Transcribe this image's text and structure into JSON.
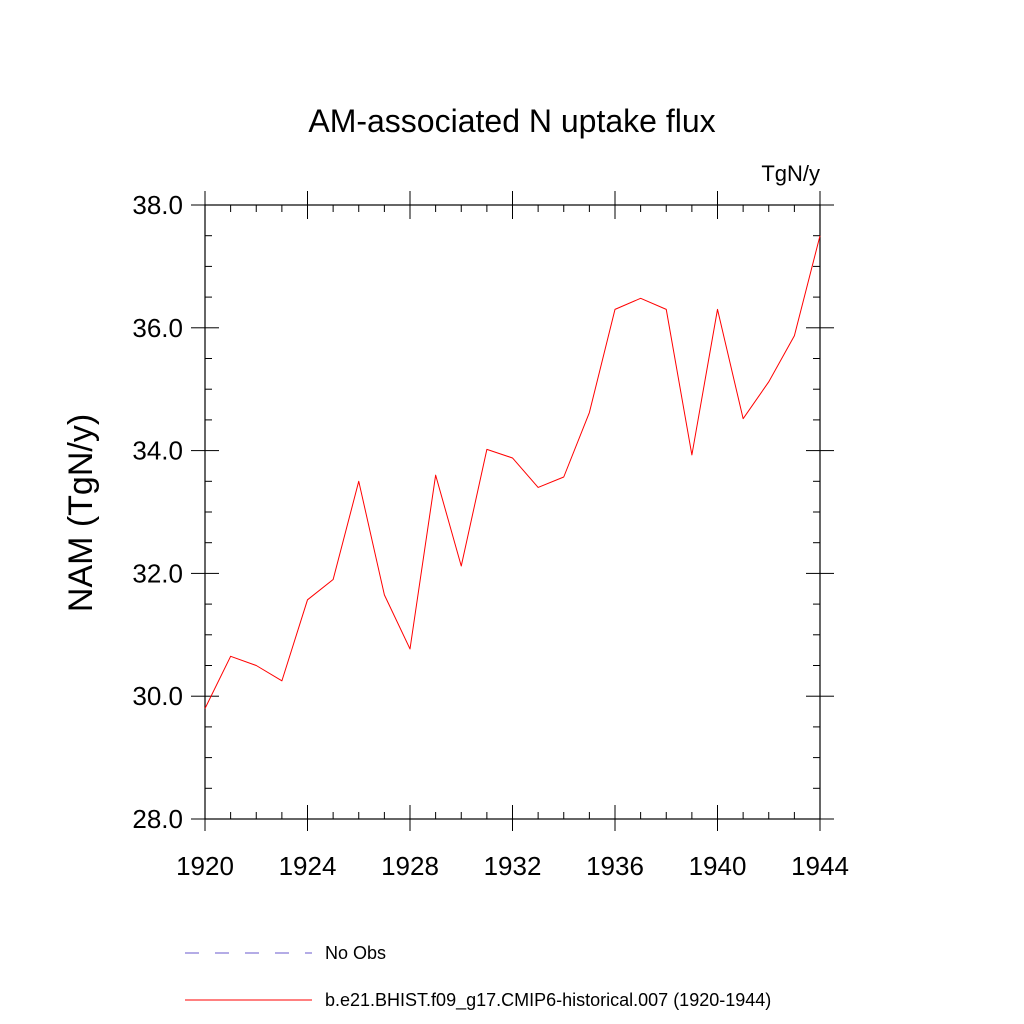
{
  "chart_data": {
    "type": "line",
    "title": "AM-associated N uptake flux",
    "units_label": "TgN/y",
    "xlabel": "",
    "ylabel": "NAM  (TgN/y)",
    "xlim": [
      1920,
      1944
    ],
    "ylim": [
      28.0,
      38.0
    ],
    "x_ticks": [
      1920,
      1924,
      1928,
      1932,
      1936,
      1940,
      1944
    ],
    "x_tick_labels": [
      "1920",
      "1924",
      "1928",
      "1932",
      "1936",
      "1940",
      "1944"
    ],
    "y_ticks": [
      28.0,
      30.0,
      32.0,
      34.0,
      36.0,
      38.0
    ],
    "y_tick_labels": [
      "28.0",
      "30.0",
      "32.0",
      "34.0",
      "36.0",
      "38.0"
    ],
    "x_minor_step": 1,
    "y_minor_step": 0.5,
    "grid": false,
    "legend_position": "bottom",
    "series": [
      {
        "name": "b.e21.BHIST.f09_g17.CMIP6-historical.007 (1920-1944)",
        "color": "#ff0000",
        "style": "solid",
        "x": [
          1920,
          1921,
          1922,
          1923,
          1924,
          1925,
          1926,
          1927,
          1928,
          1929,
          1930,
          1931,
          1932,
          1933,
          1934,
          1935,
          1936,
          1937,
          1938,
          1939,
          1940,
          1941,
          1942,
          1943,
          1944
        ],
        "y": [
          29.8,
          30.65,
          30.5,
          30.25,
          31.57,
          31.9,
          33.5,
          31.65,
          30.77,
          33.6,
          32.12,
          34.02,
          33.88,
          33.4,
          33.57,
          34.62,
          36.3,
          36.48,
          36.3,
          33.93,
          36.3,
          34.52,
          35.12,
          35.87,
          37.5
        ]
      }
    ],
    "legend": [
      {
        "label": "No Obs",
        "color": "#6a5acd",
        "style": "dashed"
      },
      {
        "label": "b.e21.BHIST.f09_g17.CMIP6-historical.007 (1920-1944)",
        "color": "#ff0000",
        "style": "solid"
      }
    ]
  }
}
